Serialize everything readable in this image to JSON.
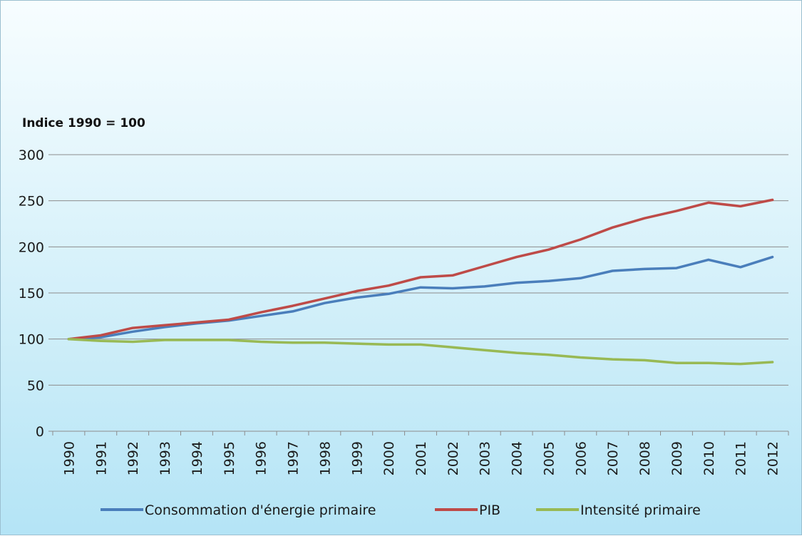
{
  "chart_data": {
    "type": "line",
    "title": "",
    "ylabel": "Indice 1990 = 100",
    "xlabel": "",
    "ylim": [
      0,
      300
    ],
    "yticks": [
      0,
      50,
      100,
      150,
      200,
      250,
      300
    ],
    "grid": true,
    "legend_position": "bottom",
    "categories": [
      "1990",
      "1991",
      "1992",
      "1993",
      "1994",
      "1995",
      "1996",
      "1997",
      "1998",
      "1999",
      "2000",
      "2001",
      "2002",
      "2003",
      "2004",
      "2005",
      "2006",
      "2007",
      "2008",
      "2009",
      "2010",
      "2011",
      "2012"
    ],
    "series": [
      {
        "name": "Consommation d'énergie primaire",
        "color": "#4a7ebb",
        "values": [
          100,
          102,
          108,
          113,
          117,
          120,
          125,
          130,
          139,
          145,
          149,
          156,
          155,
          157,
          161,
          163,
          166,
          174,
          176,
          177,
          186,
          178,
          189
        ]
      },
      {
        "name": "PIB",
        "color": "#be4b48",
        "values": [
          100,
          104,
          112,
          115,
          118,
          121,
          129,
          136,
          144,
          152,
          158,
          167,
          169,
          179,
          189,
          197,
          208,
          221,
          231,
          239,
          248,
          244,
          251
        ]
      },
      {
        "name": "Intensité primaire",
        "color": "#98b954",
        "values": [
          100,
          98,
          97,
          99,
          99,
          99,
          97,
          96,
          96,
          95,
          94,
          94,
          91,
          88,
          85,
          83,
          80,
          78,
          77,
          74,
          74,
          73,
          75
        ]
      }
    ]
  }
}
